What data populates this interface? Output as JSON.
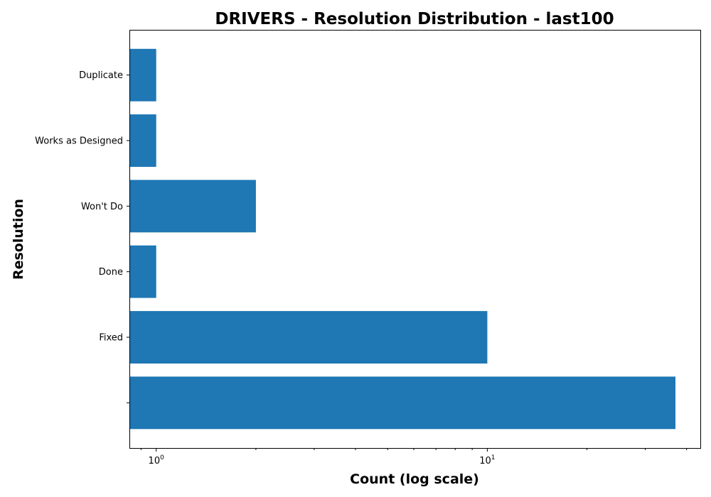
{
  "chart_data": {
    "type": "bar",
    "orientation": "horizontal",
    "title": "DRIVERS - Resolution Distribution - last100",
    "xlabel": "Count (log scale)",
    "ylabel": "Resolution",
    "x_scale": "log",
    "xlim": [
      0.83,
      44
    ],
    "categories": [
      "Duplicate",
      "Works as Designed",
      "Won't Do",
      "Done",
      "Fixed",
      ""
    ],
    "values": [
      1,
      1,
      2,
      1,
      10,
      37
    ],
    "x_ticks": [
      {
        "value": 1,
        "base": "10",
        "exp": "0"
      },
      {
        "value": 10,
        "base": "10",
        "exp": "1"
      }
    ],
    "bar_color": "#1f77b4",
    "grid": false,
    "legend": "none"
  }
}
